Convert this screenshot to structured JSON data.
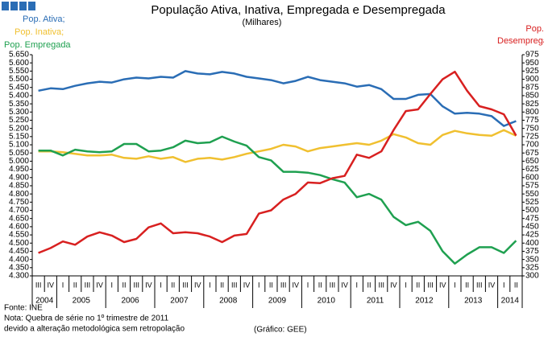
{
  "chart_data": {
    "type": "line",
    "title": "População Ativa, Inativa, Empregada e Desempregada",
    "subtitle": "(Milhares)",
    "categories": [
      "III",
      "IV",
      "I",
      "II",
      "III",
      "IV",
      "I",
      "II",
      "III",
      "IV",
      "I",
      "II",
      "III",
      "IV",
      "I",
      "II",
      "III",
      "IV",
      "I",
      "II",
      "III",
      "IV",
      "I",
      "II",
      "III",
      "IV",
      "I",
      "II",
      "III",
      "IV",
      "I",
      "II",
      "III",
      "IV",
      "I",
      "II",
      "III",
      "IV",
      "I",
      "II"
    ],
    "years": [
      "2004",
      "2005",
      "2006",
      "2007",
      "2008",
      "2009",
      "2010",
      "2011",
      "2012",
      "2013",
      "2014"
    ],
    "series": [
      {
        "name": "Pop. Ativa;",
        "color": "#2a6db5",
        "values": [
          5430,
          5445,
          5440,
          5460,
          5475,
          5485,
          5480,
          5500,
          5510,
          5505,
          5515,
          5510,
          5550,
          5535,
          5530,
          5545,
          5535,
          5515,
          5505,
          5495,
          5475,
          5490,
          5515,
          5495,
          5485,
          5475,
          5455,
          5465,
          5440,
          5380,
          5380,
          5405,
          5410,
          5335,
          5290,
          5295,
          5290,
          5275,
          5215,
          5245
        ]
      },
      {
        "name": "Pop. Inativa;",
        "color": "#f0c030",
        "values": [
          5060,
          5060,
          5055,
          5045,
          5035,
          5035,
          5040,
          5020,
          5015,
          5030,
          5015,
          5025,
          4995,
          5015,
          5020,
          5010,
          5025,
          5045,
          5060,
          5075,
          5100,
          5090,
          5060,
          5080,
          5090,
          5100,
          5110,
          5100,
          5125,
          5165,
          5145,
          5110,
          5100,
          5160,
          5185,
          5170,
          5160,
          5155,
          5190,
          5155
        ]
      },
      {
        "name": "Pop. Empregada",
        "color": "#1fa050",
        "values": [
          5065,
          5065,
          5035,
          5070,
          5060,
          5055,
          5060,
          5105,
          5105,
          5060,
          5065,
          5085,
          5125,
          5110,
          5115,
          5150,
          5120,
          5095,
          5025,
          5005,
          4935,
          4935,
          4930,
          4915,
          4890,
          4870,
          4780,
          4800,
          4765,
          4660,
          4610,
          4630,
          4575,
          4450,
          4375,
          4430,
          4475,
          4475,
          4440,
          4515
        ]
      },
      {
        "name": "Pop. Desempregada",
        "color": "#d82020",
        "axis": "y2",
        "values": [
          370,
          385,
          405,
          395,
          420,
          433,
          423,
          403,
          413,
          448,
          460,
          430,
          433,
          430,
          420,
          403,
          423,
          428,
          490,
          500,
          533,
          550,
          585,
          583,
          598,
          605,
          670,
          660,
          680,
          745,
          803,
          808,
          855,
          900,
          923,
          865,
          818,
          808,
          793,
          728
        ]
      }
    ],
    "ylim": [
      4300,
      5650
    ],
    "yticks": [
      {
        "value": 5650,
        "label": "5.650"
      },
      {
        "value": 5600,
        "label": "5.600"
      },
      {
        "value": 5550,
        "label": "5.550"
      },
      {
        "value": 5500,
        "label": "5.500"
      },
      {
        "value": 5450,
        "label": "5.450"
      },
      {
        "value": 5400,
        "label": "5.400"
      },
      {
        "value": 5350,
        "label": "5.350"
      },
      {
        "value": 5300,
        "label": "5.300"
      },
      {
        "value": 5250,
        "label": "5.250"
      },
      {
        "value": 5200,
        "label": "5.200"
      },
      {
        "value": 5150,
        "label": "5.150"
      },
      {
        "value": 5100,
        "label": "5.100"
      },
      {
        "value": 5050,
        "label": "5.050"
      },
      {
        "value": 5000,
        "label": "5.000"
      },
      {
        "value": 4950,
        "label": "4.950"
      },
      {
        "value": 4900,
        "label": "4.900"
      },
      {
        "value": 4850,
        "label": "4.850"
      },
      {
        "value": 4800,
        "label": "4.800"
      },
      {
        "value": 4750,
        "label": "4.750"
      },
      {
        "value": 4700,
        "label": "4.700"
      },
      {
        "value": 4650,
        "label": "4.650"
      },
      {
        "value": 4600,
        "label": "4.600"
      },
      {
        "value": 4550,
        "label": "4.550"
      },
      {
        "value": 4500,
        "label": "4.500"
      },
      {
        "value": 4450,
        "label": "4.450"
      },
      {
        "value": 4400,
        "label": "4.400"
      },
      {
        "value": 4350,
        "label": "4.350"
      },
      {
        "value": 4300,
        "label": "4.300"
      }
    ],
    "y2lim": [
      300,
      975
    ],
    "y2ticks": [
      975,
      950,
      925,
      900,
      875,
      850,
      825,
      800,
      775,
      750,
      725,
      700,
      675,
      650,
      625,
      600,
      575,
      550,
      525,
      500,
      475,
      450,
      425,
      400,
      375,
      350,
      325,
      300
    ],
    "notes": [
      "Fonte: INE",
      "Nota: Quebra de série no 1º trimestre de 2011",
      "devido a alteração metodológica sem retropolação"
    ],
    "credit": "(Gráfico: GEE)"
  }
}
